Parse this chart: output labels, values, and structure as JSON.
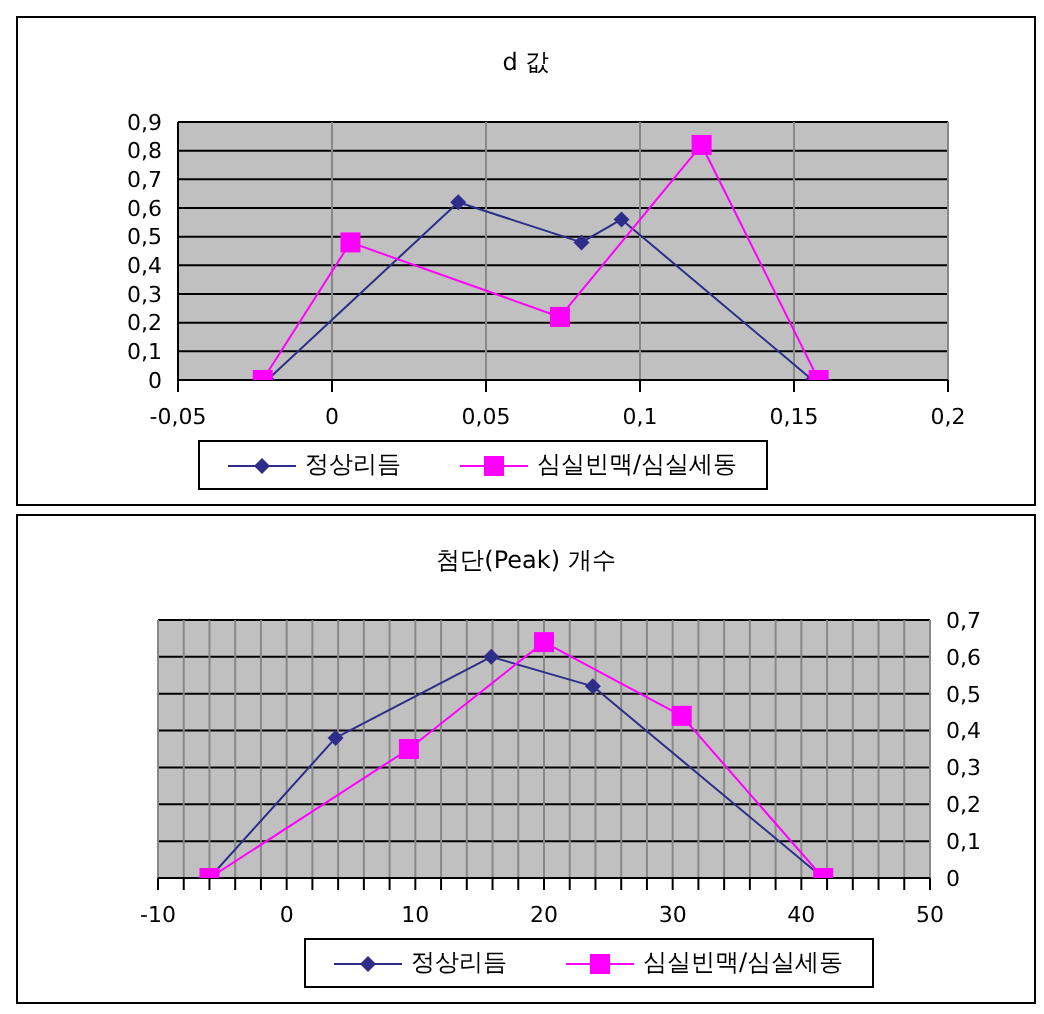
{
  "chart_data": [
    {
      "type": "line",
      "title": "d 값",
      "xlim": [
        -0.05,
        0.2
      ],
      "xticks": [
        {
          "value": -0.05,
          "label": "-0,05"
        },
        0,
        {
          "value": 0.05,
          "label": "0,05"
        },
        {
          "value": 0.1,
          "label": "0,1"
        },
        {
          "value": 0.15,
          "label": "0,15"
        },
        {
          "value": 0.2,
          "label": "0,2"
        }
      ],
      "ylim": [
        0,
        0.9
      ],
      "yticks": [
        0,
        {
          "value": 0.1,
          "label": "0,1"
        },
        {
          "value": 0.2,
          "label": "0,2"
        },
        {
          "value": 0.3,
          "label": "0,3"
        },
        {
          "value": 0.4,
          "label": "0,4"
        },
        {
          "value": 0.5,
          "label": "0,5"
        },
        {
          "value": 0.6,
          "label": "0,6"
        },
        {
          "value": 0.7,
          "label": "0,7"
        },
        {
          "value": 0.8,
          "label": "0,8"
        },
        {
          "value": 0.9,
          "label": "0,9"
        }
      ],
      "grid": true,
      "legend": "bottom",
      "series": [
        {
          "name": "정상리듬",
          "color": "#2e2e8a",
          "marker": "diamond",
          "x": [
            -0.021,
            0.041,
            0.081,
            0.094,
            0.156
          ],
          "values": [
            0,
            0.62,
            0.48,
            0.56,
            0
          ]
        },
        {
          "name": "심실빈맥/심실세동",
          "color": "#ff00ff",
          "marker": "square",
          "x": [
            -0.0225,
            0.006,
            0.074,
            0.12,
            0.158
          ],
          "values": [
            0,
            0.48,
            0.22,
            0.82,
            0
          ]
        }
      ]
    },
    {
      "type": "line",
      "title": "첨단(Peak) 개수",
      "xlim": [
        -10,
        50
      ],
      "xticks": [
        -10,
        {
          "value": -8,
          "label": null
        },
        {
          "value": -6,
          "label": null
        },
        {
          "value": -4,
          "label": null
        },
        {
          "value": -2,
          "label": null
        },
        0,
        {
          "value": 2,
          "label": null
        },
        {
          "value": 4,
          "label": null
        },
        {
          "value": 6,
          "label": null
        },
        {
          "value": 8,
          "label": null
        },
        10,
        {
          "value": 12,
          "label": null
        },
        {
          "value": 14,
          "label": null
        },
        {
          "value": 16,
          "label": null
        },
        {
          "value": 18,
          "label": null
        },
        20,
        {
          "value": 22,
          "label": null
        },
        {
          "value": 24,
          "label": null
        },
        {
          "value": 26,
          "label": null
        },
        {
          "value": 28,
          "label": null
        },
        30,
        {
          "value": 32,
          "label": null
        },
        {
          "value": 34,
          "label": null
        },
        {
          "value": 36,
          "label": null
        },
        {
          "value": 38,
          "label": null
        },
        40,
        {
          "value": 42,
          "label": null
        },
        {
          "value": 44,
          "label": null
        },
        {
          "value": 46,
          "label": null
        },
        {
          "value": 48,
          "label": null
        },
        50
      ],
      "y2lim": [
        0,
        0.7
      ],
      "y2ticks": [
        0,
        {
          "value": 0.1,
          "label": "0,1"
        },
        {
          "value": 0.2,
          "label": "0,2"
        },
        {
          "value": 0.3,
          "label": "0,3"
        },
        {
          "value": 0.4,
          "label": "0,4"
        },
        {
          "value": 0.5,
          "label": "0,5"
        },
        {
          "value": 0.6,
          "label": "0,6"
        },
        {
          "value": 0.7,
          "label": "0,7"
        }
      ],
      "grid": true,
      "legend": "bottom",
      "series": [
        {
          "name": "정상리듬",
          "color": "#2e2e8a",
          "marker": "diamond",
          "axis": "y2",
          "x": [
            -6,
            3.8,
            15.9,
            23.8,
            41.7
          ],
          "values": [
            0,
            0.38,
            0.6,
            0.52,
            0
          ]
        },
        {
          "name": "심실빈맥/심실세동",
          "color": "#ff00ff",
          "marker": "square",
          "axis": "y2",
          "x": [
            -6,
            9.5,
            20,
            30.7,
            41.7
          ],
          "values": [
            0,
            0.35,
            0.64,
            0.44,
            0
          ]
        }
      ]
    }
  ]
}
